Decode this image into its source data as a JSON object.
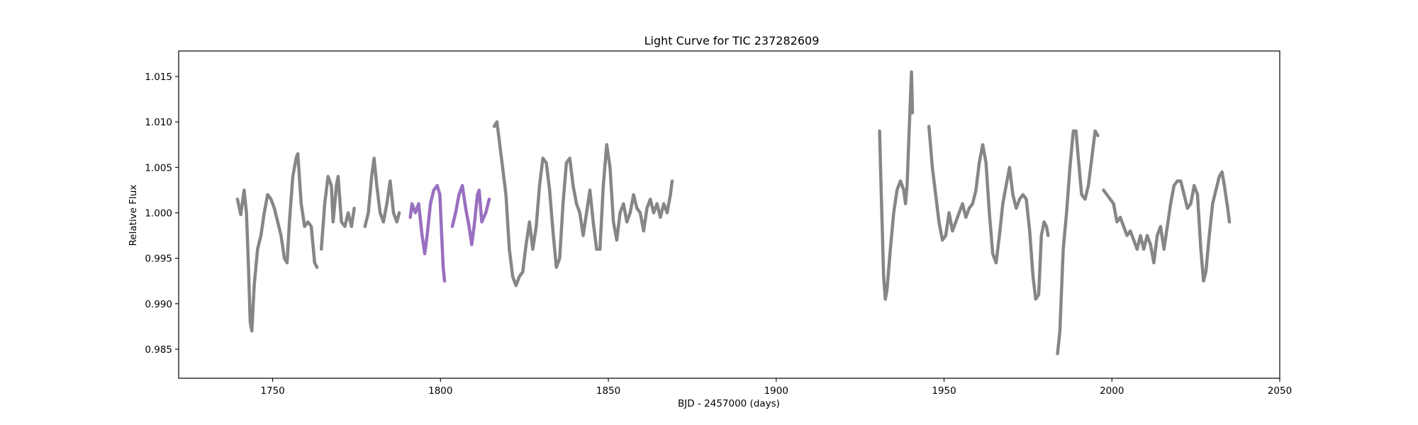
{
  "chart_data": {
    "type": "line",
    "title": "Light Curve for TIC 237282609",
    "xlabel": "BJD - 2457000 (days)",
    "ylabel": "Relative Flux",
    "xlim": [
      1722,
      2050
    ],
    "ylim": [
      0.9818,
      1.0178
    ],
    "x_ticks": [
      {
        "value": 1750,
        "label": "1750"
      },
      {
        "value": 1800,
        "label": "1800"
      },
      {
        "value": 1850,
        "label": "1850"
      },
      {
        "value": 1900,
        "label": "1900"
      },
      {
        "value": 1950,
        "label": "1950"
      },
      {
        "value": 2000,
        "label": "2000"
      },
      {
        "value": 2050,
        "label": "2050"
      }
    ],
    "y_ticks": [
      {
        "value": 0.985,
        "label": "0.985"
      },
      {
        "value": 0.99,
        "label": "0.990"
      },
      {
        "value": 0.995,
        "label": "0.995"
      },
      {
        "value": 1.0,
        "label": "1.000"
      },
      {
        "value": 1.005,
        "label": "1.005"
      },
      {
        "value": 1.01,
        "label": "1.010"
      },
      {
        "value": 1.015,
        "label": "1.015"
      }
    ],
    "grid": false,
    "legend": false,
    "series": [
      {
        "color": "#808080",
        "segments": [
          [
            [
              1739.5,
              1.0015
            ],
            [
              1740.5,
              0.9998
            ],
            [
              1741.5,
              1.0025
            ],
            [
              1742.2,
              1.0
            ],
            [
              1742.8,
              0.994
            ],
            [
              1743.3,
              0.988
            ],
            [
              1743.8,
              0.987
            ],
            [
              1744.5,
              0.992
            ],
            [
              1745.5,
              0.996
            ],
            [
              1746.5,
              0.9975
            ],
            [
              1747.5,
              1.0
            ],
            [
              1748.5,
              1.002
            ],
            [
              1749.5,
              1.0015
            ],
            [
              1750.5,
              1.0005
            ],
            [
              1751.5,
              0.999
            ],
            [
              1752.5,
              0.9975
            ],
            [
              1753.5,
              0.995
            ],
            [
              1754.3,
              0.9945
            ],
            [
              1755.0,
              0.999
            ],
            [
              1756.0,
              1.004
            ],
            [
              1757.0,
              1.006
            ],
            [
              1757.5,
              1.0065
            ],
            [
              1758.5,
              1.001
            ],
            [
              1759.5,
              0.9985
            ],
            [
              1760.5,
              0.999
            ],
            [
              1761.5,
              0.9985
            ],
            [
              1762.5,
              0.9945
            ],
            [
              1763.2,
              0.994
            ]
          ],
          [
            [
              1764.5,
              0.996
            ],
            [
              1765.5,
              1.001
            ],
            [
              1766.5,
              1.004
            ],
            [
              1767.5,
              1.003
            ],
            [
              1768.0,
              0.999
            ],
            [
              1769.0,
              1.003
            ],
            [
              1769.5,
              1.004
            ],
            [
              1770.5,
              0.999
            ],
            [
              1771.5,
              0.9985
            ],
            [
              1772.5,
              1.0
            ],
            [
              1773.5,
              0.9985
            ],
            [
              1774.3,
              1.0005
            ]
          ],
          [
            [
              1777.5,
              0.9985
            ],
            [
              1778.5,
              1.0
            ],
            [
              1779.5,
              1.004
            ],
            [
              1780.2,
              1.006
            ],
            [
              1781.0,
              1.003
            ],
            [
              1782.0,
              1.0
            ],
            [
              1783.0,
              0.999
            ],
            [
              1784.0,
              1.001
            ],
            [
              1785.0,
              1.0035
            ],
            [
              1786.0,
              1.0
            ],
            [
              1787.0,
              0.999
            ],
            [
              1787.7,
              1.0
            ]
          ],
          [
            [
              1816.0,
              1.0095
            ],
            [
              1816.8,
              1.01
            ],
            [
              1818.0,
              1.0065
            ],
            [
              1819.5,
              1.002
            ],
            [
              1820.5,
              0.996
            ],
            [
              1821.5,
              0.993
            ],
            [
              1822.5,
              0.992
            ],
            [
              1823.5,
              0.993
            ],
            [
              1824.5,
              0.9935
            ],
            [
              1825.5,
              0.9965
            ],
            [
              1826.5,
              0.999
            ],
            [
              1827.5,
              0.996
            ],
            [
              1828.5,
              0.9985
            ],
            [
              1829.5,
              1.003
            ],
            [
              1830.5,
              1.006
            ],
            [
              1831.5,
              1.0055
            ],
            [
              1832.5,
              1.0025
            ],
            [
              1833.5,
              0.998
            ],
            [
              1834.5,
              0.994
            ],
            [
              1835.5,
              0.995
            ],
            [
              1836.5,
              1.001
            ],
            [
              1837.5,
              1.0055
            ],
            [
              1838.5,
              1.006
            ],
            [
              1839.5,
              1.003
            ],
            [
              1840.5,
              1.001
            ],
            [
              1841.5,
              1.0
            ],
            [
              1842.5,
              0.9975
            ],
            [
              1843.5,
              1.0
            ],
            [
              1844.5,
              1.0025
            ],
            [
              1845.5,
              0.999
            ],
            [
              1846.5,
              0.996
            ],
            [
              1847.5,
              0.996
            ],
            [
              1848.5,
              1.003
            ],
            [
              1849.5,
              1.0075
            ],
            [
              1850.5,
              1.005
            ],
            [
              1851.5,
              0.999
            ],
            [
              1852.5,
              0.997
            ],
            [
              1853.5,
              1.0
            ],
            [
              1854.5,
              1.001
            ],
            [
              1855.5,
              0.999
            ],
            [
              1856.5,
              1.0
            ],
            [
              1857.5,
              1.002
            ],
            [
              1858.5,
              1.0005
            ],
            [
              1859.5,
              1.0
            ],
            [
              1860.5,
              0.998
            ],
            [
              1861.5,
              1.0005
            ],
            [
              1862.5,
              1.0015
            ],
            [
              1863.5,
              1.0
            ],
            [
              1864.5,
              1.001
            ],
            [
              1865.5,
              0.9995
            ],
            [
              1866.5,
              1.001
            ],
            [
              1867.5,
              1.0
            ],
            [
              1868.5,
              1.002
            ],
            [
              1869.0,
              1.0035
            ]
          ],
          [
            [
              1930.8,
              1.009
            ],
            [
              1931.3,
              1.002
            ],
            [
              1932.0,
              0.993
            ],
            [
              1932.5,
              0.9905
            ],
            [
              1933.0,
              0.9915
            ],
            [
              1934.0,
              0.996
            ],
            [
              1935.0,
              1.0
            ],
            [
              1936.0,
              1.0025
            ],
            [
              1937.0,
              1.0035
            ],
            [
              1938.0,
              1.0025
            ],
            [
              1938.5,
              1.001
            ],
            [
              1939.0,
              1.003
            ],
            [
              1939.5,
              1.008
            ],
            [
              1940.3,
              1.0155
            ],
            [
              1940.6,
              1.011
            ]
          ],
          [
            [
              1945.5,
              1.0095
            ],
            [
              1946.5,
              1.005
            ],
            [
              1947.5,
              1.002
            ],
            [
              1948.5,
              0.999
            ],
            [
              1949.5,
              0.997
            ],
            [
              1950.5,
              0.9975
            ],
            [
              1951.5,
              1.0
            ],
            [
              1952.5,
              0.998
            ],
            [
              1953.5,
              0.999
            ],
            [
              1954.5,
              1.0
            ],
            [
              1955.5,
              1.001
            ],
            [
              1956.5,
              0.9995
            ],
            [
              1957.5,
              1.0005
            ],
            [
              1958.5,
              1.001
            ],
            [
              1959.5,
              1.0025
            ],
            [
              1960.5,
              1.0055
            ],
            [
              1961.5,
              1.0075
            ],
            [
              1962.5,
              1.0055
            ],
            [
              1963.5,
              1.0
            ],
            [
              1964.5,
              0.9955
            ],
            [
              1965.5,
              0.9945
            ],
            [
              1966.5,
              0.9975
            ],
            [
              1967.5,
              1.001
            ],
            [
              1968.5,
              1.003
            ],
            [
              1969.5,
              1.005
            ],
            [
              1970.5,
              1.002
            ],
            [
              1971.5,
              1.0005
            ],
            [
              1972.5,
              1.0015
            ],
            [
              1973.5,
              1.002
            ],
            [
              1974.5,
              1.0015
            ],
            [
              1975.5,
              0.998
            ],
            [
              1976.5,
              0.993
            ],
            [
              1977.3,
              0.9905
            ],
            [
              1978.2,
              0.991
            ],
            [
              1979.0,
              0.9975
            ],
            [
              1979.8,
              0.999
            ],
            [
              1980.5,
              0.9985
            ],
            [
              1981.0,
              0.9975
            ]
          ],
          [
            [
              1983.8,
              0.9845
            ],
            [
              1984.5,
              0.987
            ],
            [
              1985.5,
              0.996
            ],
            [
              1986.5,
              1.0
            ],
            [
              1987.5,
              1.005
            ],
            [
              1988.5,
              1.009
            ],
            [
              1989.3,
              1.009
            ],
            [
              1990.0,
              1.006
            ],
            [
              1991.0,
              1.002
            ],
            [
              1992.0,
              1.0015
            ],
            [
              1993.0,
              1.003
            ],
            [
              1994.0,
              1.006
            ],
            [
              1995.0,
              1.009
            ],
            [
              1995.8,
              1.0085
            ]
          ],
          [
            [
              1997.5,
              1.0025
            ],
            [
              1998.5,
              1.002
            ],
            [
              1999.5,
              1.0015
            ],
            [
              2000.5,
              1.001
            ],
            [
              2001.5,
              0.999
            ],
            [
              2002.5,
              0.9995
            ],
            [
              2003.5,
              0.9985
            ],
            [
              2004.5,
              0.9975
            ],
            [
              2005.5,
              0.998
            ],
            [
              2006.5,
              0.997
            ],
            [
              2007.5,
              0.996
            ],
            [
              2008.5,
              0.9975
            ],
            [
              2009.5,
              0.996
            ],
            [
              2010.5,
              0.9975
            ],
            [
              2011.5,
              0.9965
            ],
            [
              2012.5,
              0.9945
            ],
            [
              2013.5,
              0.9975
            ],
            [
              2014.5,
              0.9985
            ],
            [
              2015.5,
              0.996
            ],
            [
              2016.5,
              0.9985
            ],
            [
              2017.5,
              1.001
            ],
            [
              2018.5,
              1.003
            ],
            [
              2019.5,
              1.0035
            ],
            [
              2020.5,
              1.0035
            ],
            [
              2021.5,
              1.002
            ],
            [
              2022.5,
              1.0005
            ],
            [
              2023.5,
              1.001
            ],
            [
              2024.5,
              1.003
            ],
            [
              2025.5,
              1.002
            ],
            [
              2026.5,
              0.996
            ],
            [
              2027.3,
              0.9925
            ],
            [
              2028.0,
              0.9935
            ],
            [
              2029.0,
              0.9975
            ],
            [
              2030.0,
              1.001
            ],
            [
              2031.0,
              1.0025
            ],
            [
              2032.0,
              1.004
            ],
            [
              2032.8,
              1.0045
            ],
            [
              2033.5,
              1.003
            ],
            [
              2034.5,
              1.0005
            ],
            [
              2035.0,
              0.999
            ]
          ]
        ]
      },
      {
        "color": "#9467bd",
        "segments": [
          [
            [
              1791.0,
              0.9995
            ],
            [
              1791.5,
              1.001
            ],
            [
              1792.5,
              1.0
            ],
            [
              1793.5,
              1.001
            ],
            [
              1794.5,
              0.9975
            ],
            [
              1795.3,
              0.9955
            ],
            [
              1796.0,
              0.9975
            ],
            [
              1797.0,
              1.001
            ],
            [
              1798.0,
              1.0025
            ],
            [
              1799.0,
              1.003
            ],
            [
              1799.8,
              1.002
            ],
            [
              1800.3,
              0.998
            ],
            [
              1800.8,
              0.994
            ],
            [
              1801.2,
              0.9925
            ]
          ],
          [
            [
              1803.5,
              0.9985
            ],
            [
              1804.5,
              1.0
            ],
            [
              1805.5,
              1.002
            ],
            [
              1806.5,
              1.003
            ],
            [
              1807.5,
              1.0005
            ],
            [
              1808.5,
              0.9985
            ],
            [
              1809.3,
              0.9965
            ],
            [
              1810.0,
              0.9985
            ],
            [
              1811.0,
              1.002
            ],
            [
              1811.5,
              1.0025
            ],
            [
              1812.3,
              0.999
            ],
            [
              1813.5,
              1.0
            ],
            [
              1814.5,
              1.0015
            ]
          ]
        ]
      }
    ]
  }
}
